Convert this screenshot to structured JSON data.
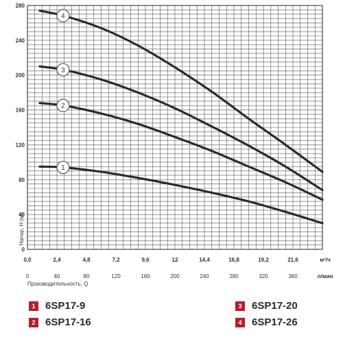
{
  "chart_data": {
    "type": "line",
    "ylabel": "Напор, H (м)",
    "xlabel": "Производительность, Q",
    "x_unit_top": "м³/ч",
    "x_unit_bottom": "л/мин",
    "y_ticks": [
      "0",
      "40",
      "80",
      "120",
      "160",
      "200",
      "240",
      "280"
    ],
    "x_ticks_top": [
      "0,0",
      "2,4",
      "4,8",
      "7,2",
      "9,6",
      "12",
      "14,4",
      "16,8",
      "19,2",
      "21,6"
    ],
    "x_ticks_bottom": [
      "0",
      "40",
      "80",
      "120",
      "160",
      "200",
      "240",
      "280",
      "320",
      "360"
    ],
    "xlim": [
      0,
      24
    ],
    "ylim": [
      0,
      280
    ],
    "grid": true,
    "series": [
      {
        "name": "6SP17-9",
        "marker": "1",
        "x": [
          1.0,
          3,
          6,
          9,
          12,
          15,
          18,
          21,
          24
        ],
        "y": [
          95,
          94,
          89,
          82,
          74,
          65,
          55,
          43,
          30
        ]
      },
      {
        "name": "6SP17-16",
        "marker": "2",
        "x": [
          1.0,
          3,
          6,
          9,
          12,
          15,
          18,
          21,
          24
        ],
        "y": [
          168,
          165,
          156,
          144,
          129,
          113,
          95,
          77,
          57
        ]
      },
      {
        "name": "6SP17-20",
        "marker": "3",
        "x": [
          1.0,
          3,
          6,
          9,
          12,
          15,
          18,
          21,
          24
        ],
        "y": [
          210,
          206,
          195,
          180,
          162,
          141,
          119,
          95,
          68
        ]
      },
      {
        "name": "6SP17-26",
        "marker": "4",
        "x": [
          1.0,
          3,
          6,
          9,
          12,
          15,
          18,
          21,
          24
        ],
        "y": [
          274,
          268,
          254,
          234,
          209,
          181,
          150,
          120,
          89
        ]
      }
    ]
  },
  "legend": [
    {
      "num": "1",
      "label": "6SP17-9"
    },
    {
      "num": "2",
      "label": "6SP17-16"
    },
    {
      "num": "3",
      "label": "6SP17-20"
    },
    {
      "num": "4",
      "label": "6SP17-26"
    }
  ],
  "colors": {
    "badge": "#b3202b",
    "curve": "#2b2b2b",
    "grid": "#555555"
  }
}
